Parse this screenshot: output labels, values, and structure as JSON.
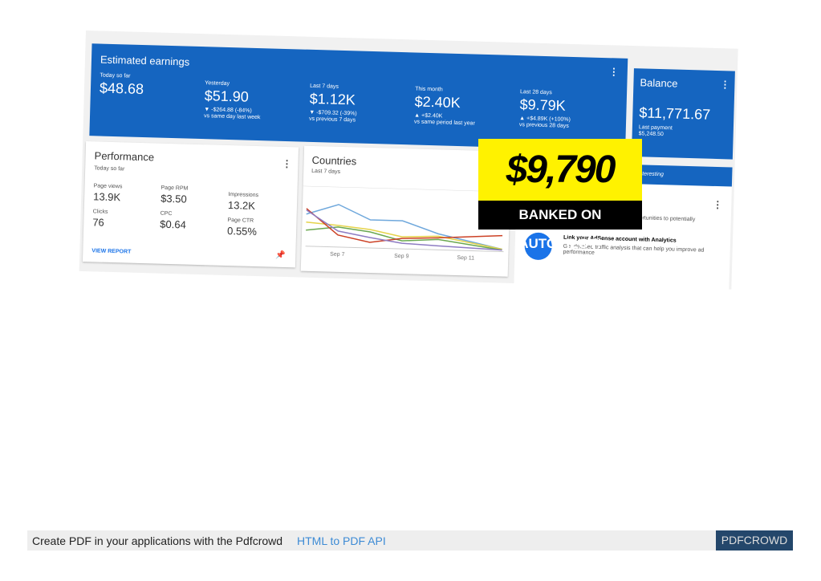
{
  "earnings": {
    "title": "Estimated earnings",
    "items": [
      {
        "label": "Today so far",
        "value": "$48.68"
      },
      {
        "label": "Yesterday",
        "value": "$51.90",
        "change": "▼ -$264.88 (-84%)",
        "compare": "vs same day last week"
      },
      {
        "label": "Last 7 days",
        "value": "$1.12K",
        "change": "▼ -$709.32 (-39%)",
        "compare": "vs previous 7 days"
      },
      {
        "label": "This month",
        "value": "$2.40K",
        "change": "▲ +$2.40K",
        "compare": "vs same period last year"
      },
      {
        "label": "Last 28 days",
        "value": "$9.79K",
        "change": "▲ +$4.89K (+100%)",
        "compare": "vs previous 28 days"
      }
    ]
  },
  "balance": {
    "title": "Balance",
    "value": "$11,771.67",
    "note": "Last payment",
    "note_value": "$5,248.50"
  },
  "performance": {
    "title": "Performance",
    "period": "Today so far",
    "metrics": [
      {
        "label": "Page views",
        "value": "13.9K"
      },
      {
        "label": "Page RPM",
        "value": "$3.50"
      },
      {
        "label": "Impressions",
        "value": "13.2K"
      },
      {
        "label": "Clicks",
        "value": "76"
      },
      {
        "label": "CPC",
        "value": "$0.64"
      },
      {
        "label": "Page CTR",
        "value": "0.55%"
      }
    ],
    "link": "VIEW REPORT"
  },
  "countries": {
    "title": "Countries",
    "period": "Last 7 days",
    "x_labels": [
      "Sep 7",
      "Sep 9",
      "Sep 11"
    ]
  },
  "promo": {
    "amount": "$9,790",
    "caption": "BANKED ON AUTOPILOT!"
  },
  "side_card": {
    "banner": "Interesting",
    "text": "portunities to potentially",
    "link_title": "Link your AdSense account with Analytics",
    "link_text": "Get detailed traffic analysis that can help you improve ad performance"
  },
  "footer": {
    "text": "Create PDF in your applications with the Pdfcrowd",
    "link": "HTML to PDF API",
    "brand": "PDFCROWD"
  }
}
